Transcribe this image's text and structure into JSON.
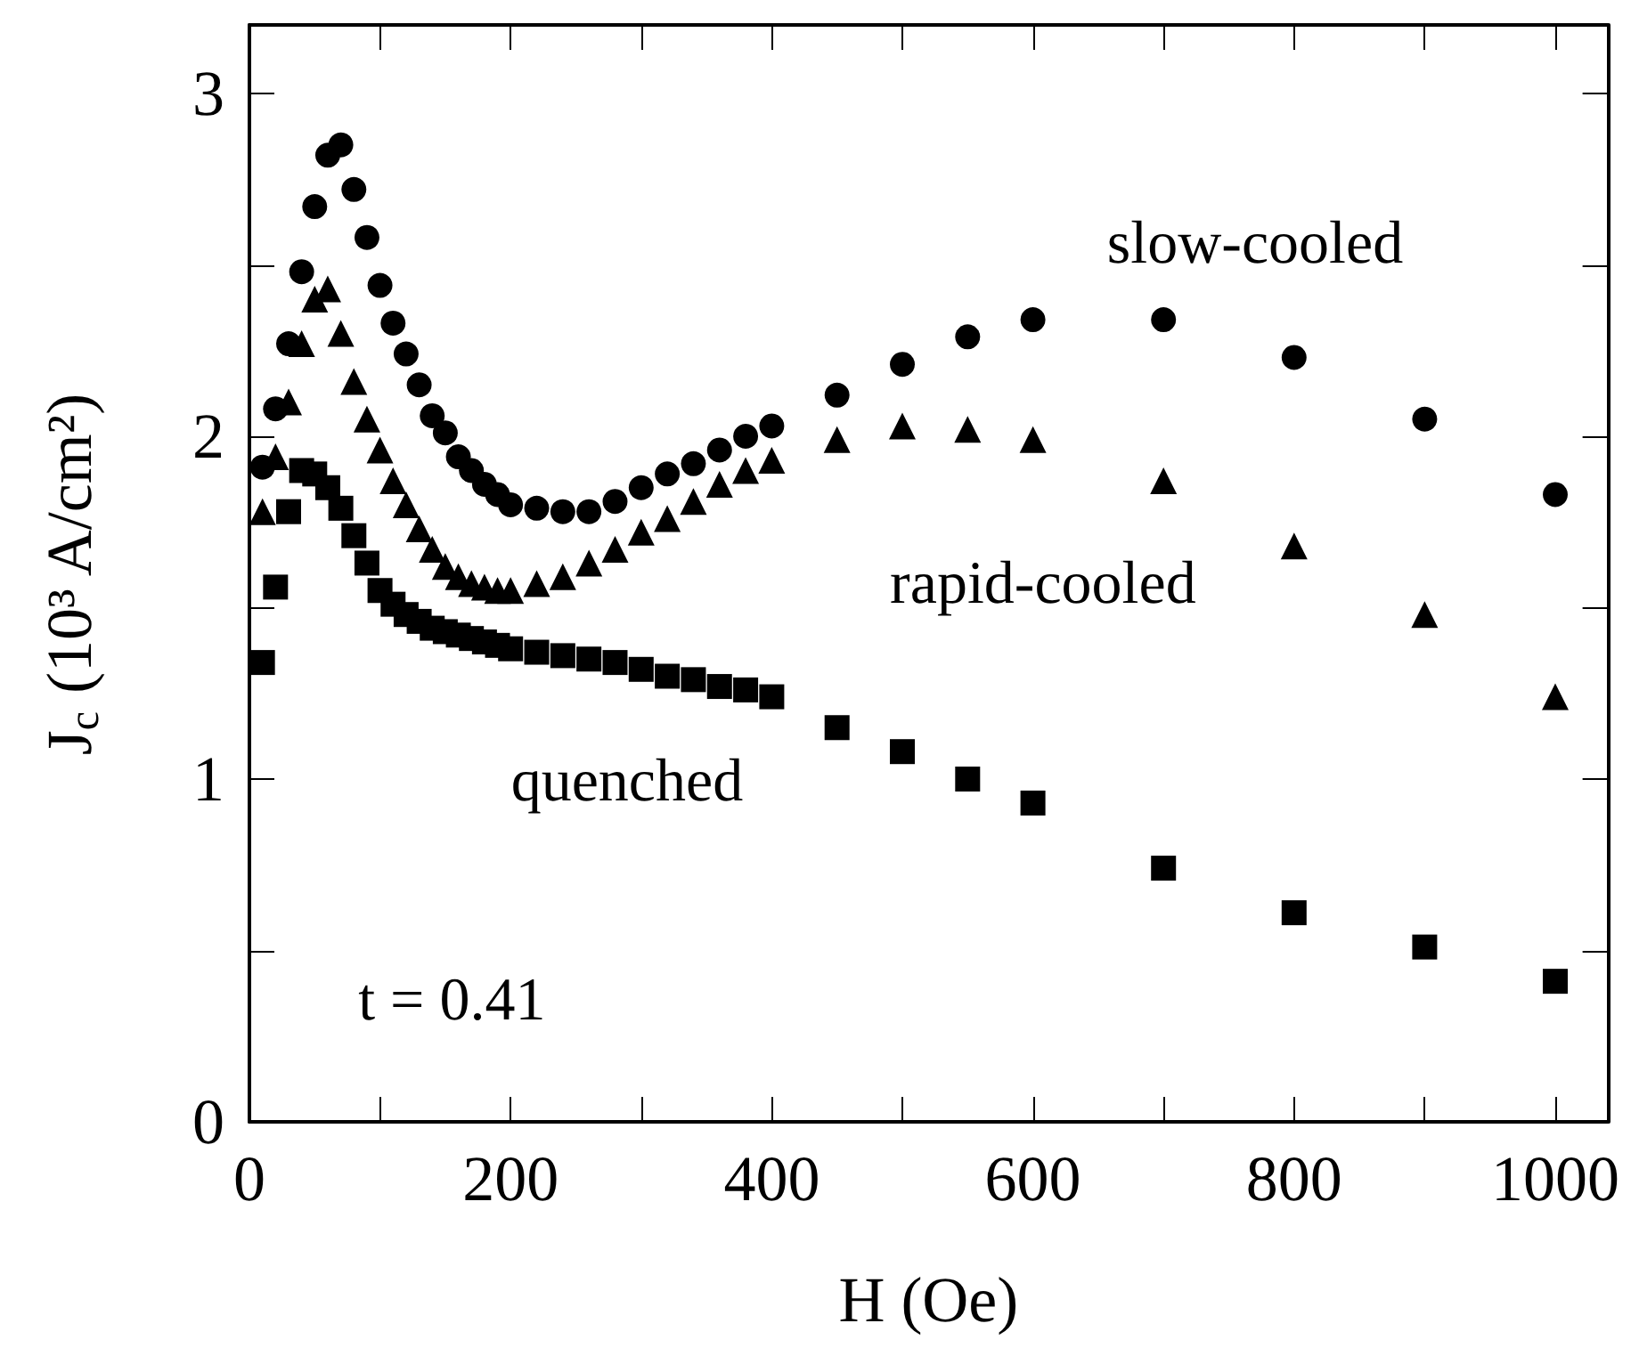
{
  "chart_data": {
    "type": "scatter",
    "xlabel": "H (Oe)",
    "ylabel": "J$_{c}$ (10³ A/cm²)",
    "xlim": [
      0,
      1040
    ],
    "ylim": [
      0,
      3.2
    ],
    "xticks": [
      0,
      {
        "value": 100,
        "label": null
      },
      200,
      {
        "value": 300,
        "label": null
      },
      400,
      {
        "value": 500,
        "label": null
      },
      600,
      {
        "value": 700,
        "label": null
      },
      800,
      {
        "value": 900,
        "label": null
      },
      1000
    ],
    "yticks": [
      0,
      {
        "value": 0.5,
        "label": null
      },
      1,
      {
        "value": 1.5,
        "label": null
      },
      2,
      {
        "value": 2.5,
        "label": null
      },
      3
    ],
    "grid": false,
    "legend": false,
    "annotations": [
      "t = 0.41"
    ],
    "x": [
      10,
      20,
      30,
      40,
      50,
      60,
      70,
      80,
      90,
      100,
      110,
      120,
      130,
      140,
      150,
      160,
      170,
      180,
      190,
      200,
      220,
      240,
      260,
      280,
      300,
      320,
      340,
      360,
      380,
      400,
      450,
      500,
      550,
      600,
      700,
      800,
      900,
      1000
    ],
    "series": [
      {
        "name": "slow-cooled",
        "color": "#000000",
        "marker": "circle",
        "values": [
          1.91,
          2.08,
          2.27,
          2.48,
          2.67,
          2.82,
          2.85,
          2.72,
          2.58,
          2.44,
          2.33,
          2.24,
          2.15,
          2.06,
          2.01,
          1.94,
          1.9,
          1.86,
          1.83,
          1.8,
          1.79,
          1.78,
          1.78,
          1.81,
          1.85,
          1.89,
          1.92,
          1.96,
          2.0,
          2.03,
          2.12,
          2.21,
          2.29,
          2.34,
          2.34,
          2.23,
          2.05,
          1.83
        ]
      },
      {
        "name": "rapid-cooled",
        "color": "#000000",
        "marker": "triangle",
        "values": [
          1.78,
          1.94,
          2.1,
          2.27,
          2.4,
          2.43,
          2.3,
          2.16,
          2.05,
          1.96,
          1.87,
          1.8,
          1.73,
          1.67,
          1.62,
          1.59,
          1.57,
          1.56,
          1.55,
          1.55,
          1.57,
          1.59,
          1.63,
          1.67,
          1.72,
          1.76,
          1.81,
          1.86,
          1.9,
          1.93,
          1.99,
          2.03,
          2.02,
          1.99,
          1.87,
          1.68,
          1.48,
          1.24
        ]
      },
      {
        "name": "quenched",
        "color": "#000000",
        "marker": "square",
        "values": [
          1.34,
          1.56,
          1.78,
          1.9,
          1.89,
          1.85,
          1.79,
          1.71,
          1.63,
          1.55,
          1.51,
          1.48,
          1.46,
          1.44,
          1.43,
          1.42,
          1.41,
          1.4,
          1.39,
          1.38,
          1.37,
          1.36,
          1.35,
          1.34,
          1.32,
          1.3,
          1.29,
          1.27,
          1.26,
          1.24,
          1.15,
          1.08,
          1.0,
          0.93,
          0.74,
          0.61,
          0.51,
          0.41
        ]
      }
    ]
  }
}
